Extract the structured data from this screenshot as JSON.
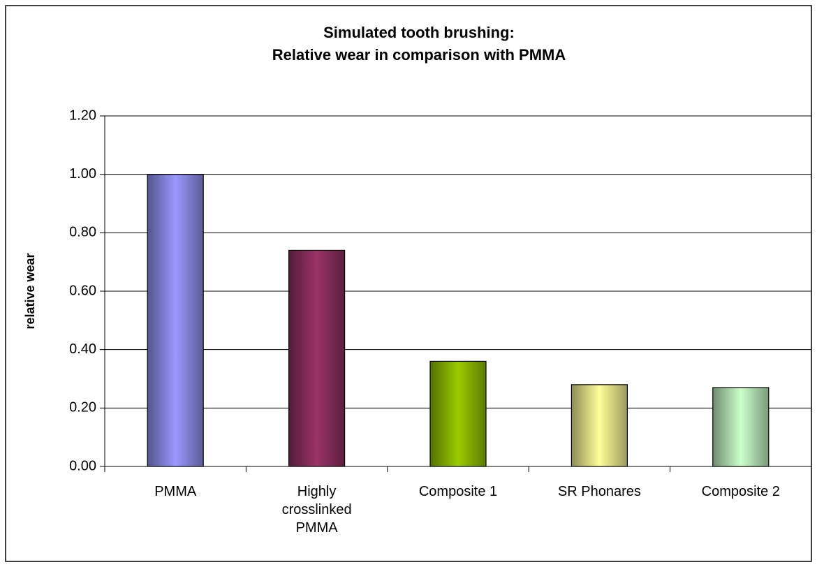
{
  "chart_data": {
    "type": "bar",
    "title": [
      "Simulated tooth brushing:",
      "Relative wear in comparison with PMMA"
    ],
    "y_label": "relative wear",
    "categories": [
      "PMMA",
      "Highly crosslinked PMMA",
      "Composite 1",
      "SR Phonares",
      "Composite 2"
    ],
    "values": [
      1.0,
      0.74,
      0.36,
      0.28,
      0.27
    ],
    "colors": [
      "#9999ff",
      "#993366",
      "#99cc00",
      "#ffff99",
      "#ccffcc"
    ],
    "ylim": [
      0,
      1.2
    ],
    "yticks": [
      {
        "value": 0,
        "label": "0.00"
      },
      {
        "value": 0.2,
        "label": "0.20"
      },
      {
        "value": 0.4,
        "label": "0.40"
      },
      {
        "value": 0.6,
        "label": "0.60"
      },
      {
        "value": 0.8,
        "label": "0.80"
      },
      {
        "value": 1.0,
        "label": "1.00"
      },
      {
        "value": 1.2,
        "label": "1.20"
      }
    ],
    "grid": true
  }
}
